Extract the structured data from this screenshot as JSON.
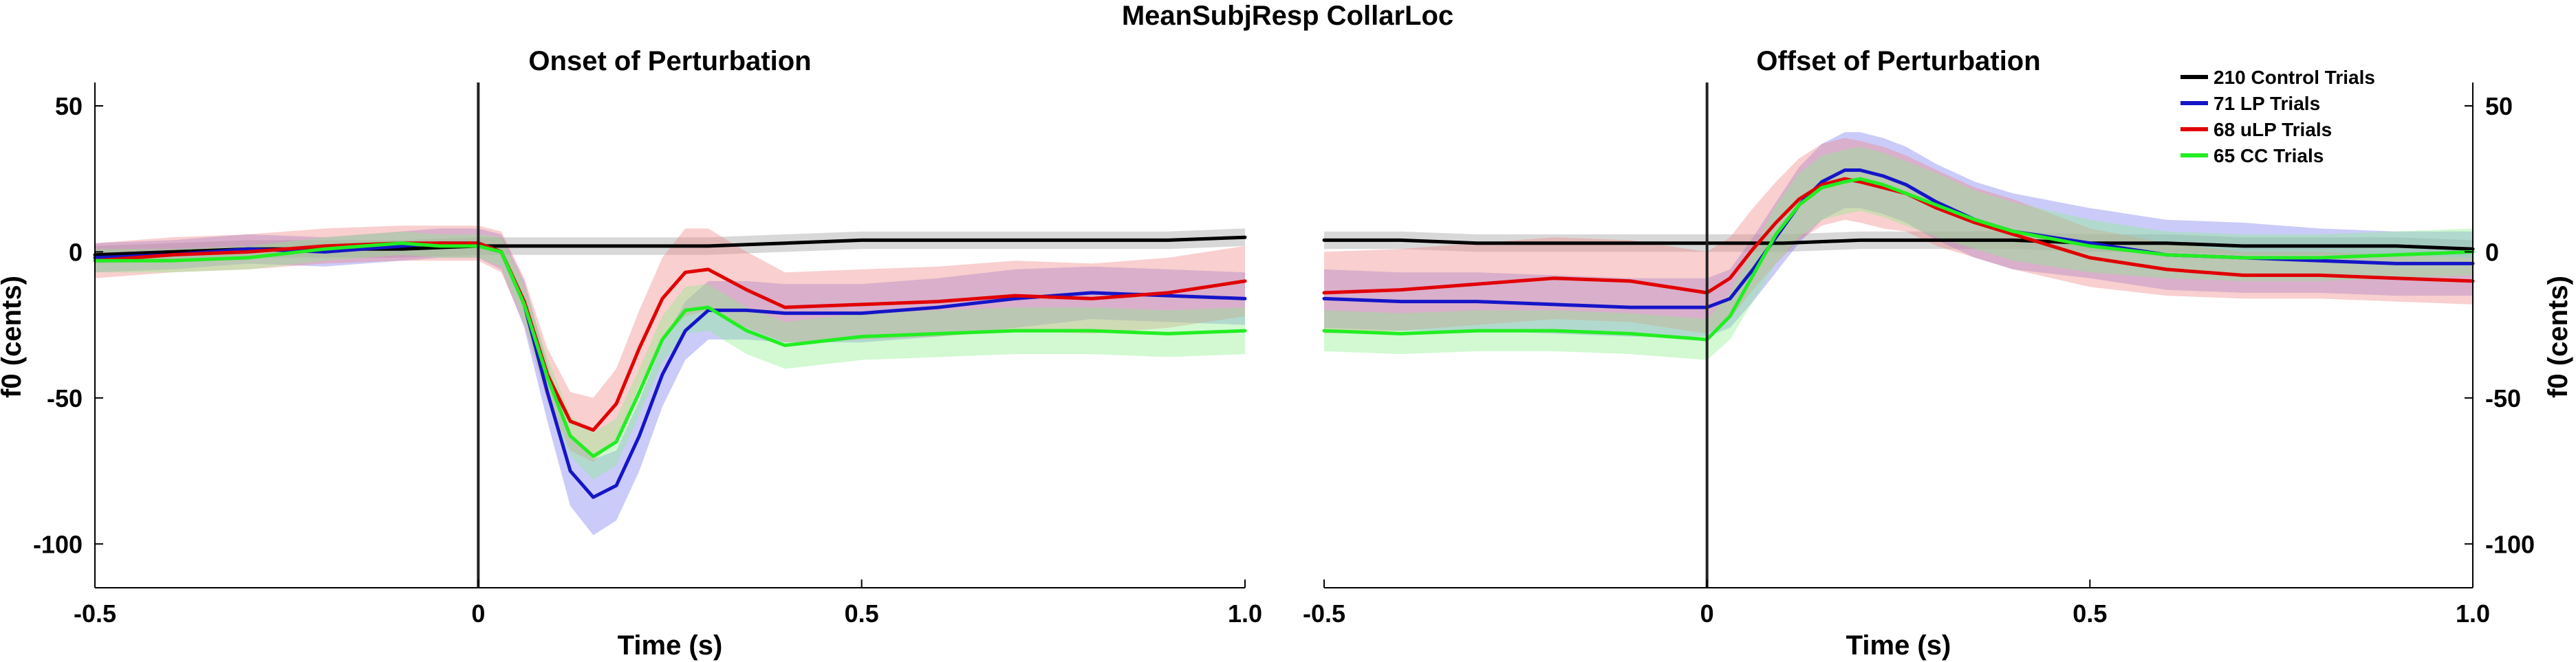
{
  "chart_data": {
    "title": "MeanSubjResp CollarLoc",
    "panels": [
      {
        "type": "line",
        "title": "Onset of Perturbation",
        "xlabel": "Time (s)",
        "ylabel": "f0 (cents)",
        "xlim": [
          -0.5,
          1.0
        ],
        "ylim": [
          -115,
          58
        ],
        "xticks": [
          -0.5,
          0,
          0.5,
          1.0
        ],
        "xtick_labels": [
          "-0.5",
          "0",
          "0.5",
          "1.0"
        ],
        "yticks": [
          50,
          0,
          -50,
          -100
        ],
        "ytick_labels": [
          "50",
          "0",
          "-50",
          "-100"
        ],
        "vline_x": 0,
        "series": [
          {
            "color": "#000000",
            "band": "#999999",
            "x": [
              -0.5,
              -0.4,
              -0.3,
              -0.2,
              -0.1,
              0,
              0.1,
              0.2,
              0.3,
              0.4,
              0.5,
              0.6,
              0.7,
              0.8,
              0.9,
              1.0
            ],
            "y": [
              -1,
              0,
              1,
              1,
              1,
              2,
              2,
              2,
              2,
              3,
              4,
              4,
              4,
              4,
              4,
              5
            ],
            "err": [
              3,
              3,
              3,
              3,
              3,
              3,
              3,
              3,
              3,
              3,
              3,
              3,
              3,
              3,
              3,
              3
            ]
          },
          {
            "color": "#1515c8",
            "band": "#7777f0",
            "x": [
              -0.5,
              -0.4,
              -0.3,
              -0.2,
              -0.1,
              -0.05,
              0,
              0.03,
              0.06,
              0.09,
              0.12,
              0.15,
              0.18,
              0.21,
              0.24,
              0.27,
              0.3,
              0.35,
              0.4,
              0.5,
              0.6,
              0.7,
              0.8,
              0.9,
              1.0
            ],
            "y": [
              -2,
              -1,
              1,
              0,
              2,
              3,
              3,
              0,
              -18,
              -48,
              -75,
              -84,
              -80,
              -63,
              -42,
              -27,
              -20,
              -20,
              -21,
              -21,
              -19,
              -16,
              -14,
              -15,
              -16
            ],
            "err": [
              5,
              5,
              5,
              5,
              5,
              5,
              5,
              6,
              8,
              10,
              12,
              13,
              12,
              12,
              11,
              10,
              10,
              10,
              10,
              10,
              10,
              10,
              9,
              9,
              9
            ]
          },
          {
            "color": "#e00000",
            "band": "#f08080",
            "x": [
              -0.5,
              -0.4,
              -0.3,
              -0.2,
              -0.1,
              -0.05,
              0,
              0.03,
              0.06,
              0.09,
              0.12,
              0.15,
              0.18,
              0.21,
              0.24,
              0.27,
              0.3,
              0.35,
              0.4,
              0.5,
              0.6,
              0.7,
              0.8,
              0.9,
              1.0
            ],
            "y": [
              -3,
              -1,
              0,
              2,
              3,
              3,
              3,
              0,
              -17,
              -42,
              -58,
              -61,
              -52,
              -33,
              -16,
              -7,
              -6,
              -13,
              -19,
              -18,
              -17,
              -15,
              -16,
              -14,
              -10
            ],
            "err": [
              6,
              6,
              6,
              6,
              6,
              6,
              6,
              7,
              8,
              9,
              10,
              11,
              12,
              13,
              14,
              15,
              14,
              13,
              12,
              12,
              12,
              12,
              12,
              12,
              12
            ]
          },
          {
            "color": "#22ee22",
            "band": "#88ee88",
            "x": [
              -0.5,
              -0.4,
              -0.3,
              -0.2,
              -0.1,
              -0.05,
              0,
              0.03,
              0.06,
              0.09,
              0.12,
              0.15,
              0.18,
              0.21,
              0.24,
              0.27,
              0.3,
              0.35,
              0.4,
              0.5,
              0.6,
              0.7,
              0.8,
              0.9,
              1.0
            ],
            "y": [
              -3,
              -3,
              -2,
              1,
              3,
              2,
              2,
              0,
              -18,
              -43,
              -63,
              -70,
              -65,
              -48,
              -30,
              -20,
              -19,
              -27,
              -32,
              -29,
              -28,
              -27,
              -27,
              -28,
              -27
            ],
            "err": [
              4,
              4,
              4,
              4,
              4,
              4,
              4,
              5,
              6,
              7,
              7,
              8,
              8,
              8,
              8,
              8,
              8,
              8,
              8,
              8,
              8,
              8,
              8,
              8,
              8
            ]
          }
        ]
      },
      {
        "type": "line",
        "title": "Offset of Perturbation",
        "xlabel": "Time (s)",
        "ylabel": "f0 (cents)",
        "xlim": [
          -0.5,
          1.0
        ],
        "ylim": [
          -115,
          58
        ],
        "xticks": [
          -0.5,
          0,
          0.5,
          1.0
        ],
        "xtick_labels": [
          "-0.5",
          "0",
          "0.5",
          "1.0"
        ],
        "yticks": [
          50,
          0,
          -50,
          -100
        ],
        "ytick_labels": [
          "50",
          "0",
          "-50",
          "-100"
        ],
        "vline_x": 0,
        "series": [
          {
            "color": "#000000",
            "band": "#999999",
            "x": [
              -0.5,
              -0.4,
              -0.3,
              -0.2,
              -0.1,
              0,
              0.1,
              0.2,
              0.3,
              0.4,
              0.5,
              0.6,
              0.7,
              0.8,
              0.9,
              1.0
            ],
            "y": [
              4,
              4,
              3,
              3,
              3,
              3,
              3,
              4,
              4,
              4,
              3,
              3,
              2,
              2,
              2,
              1
            ],
            "err": [
              3,
              3,
              3,
              3,
              3,
              3,
              3,
              3,
              3,
              3,
              3,
              3,
              3,
              3,
              3,
              3
            ]
          },
          {
            "color": "#1515c8",
            "band": "#7777f0",
            "x": [
              -0.5,
              -0.4,
              -0.3,
              -0.2,
              -0.1,
              -0.05,
              0,
              0.03,
              0.06,
              0.09,
              0.12,
              0.15,
              0.18,
              0.2,
              0.23,
              0.26,
              0.3,
              0.35,
              0.4,
              0.5,
              0.6,
              0.7,
              0.8,
              0.9,
              1.0
            ],
            "y": [
              -16,
              -17,
              -17,
              -18,
              -19,
              -19,
              -19,
              -16,
              -6,
              5,
              16,
              24,
              28,
              28,
              26,
              23,
              17,
              11,
              7,
              3,
              -1,
              -2,
              -3,
              -4,
              -4
            ],
            "err": [
              10,
              10,
              10,
              10,
              10,
              10,
              10,
              10,
              11,
              12,
              13,
              13,
              13,
              13,
              13,
              13,
              13,
              13,
              13,
              12,
              12,
              12,
              11,
              11,
              11
            ]
          },
          {
            "color": "#e00000",
            "band": "#f08080",
            "x": [
              -0.5,
              -0.4,
              -0.3,
              -0.2,
              -0.1,
              -0.05,
              0,
              0.03,
              0.06,
              0.09,
              0.12,
              0.15,
              0.18,
              0.2,
              0.23,
              0.26,
              0.3,
              0.35,
              0.4,
              0.5,
              0.6,
              0.7,
              0.8,
              0.9,
              1.0
            ],
            "y": [
              -14,
              -13,
              -11,
              -9,
              -10,
              -12,
              -14,
              -9,
              1,
              10,
              18,
              23,
              25,
              24,
              22,
              20,
              15,
              10,
              6,
              -2,
              -6,
              -8,
              -8,
              -9,
              -10
            ],
            "err": [
              14,
              14,
              14,
              14,
              14,
              14,
              14,
              14,
              14,
              14,
              14,
              14,
              14,
              14,
              14,
              13,
              13,
              12,
              12,
              10,
              9,
              8,
              8,
              8,
              8
            ]
          },
          {
            "color": "#22ee22",
            "band": "#88ee88",
            "x": [
              -0.5,
              -0.4,
              -0.3,
              -0.2,
              -0.1,
              -0.05,
              0,
              0.03,
              0.06,
              0.09,
              0.12,
              0.15,
              0.18,
              0.2,
              0.23,
              0.26,
              0.3,
              0.35,
              0.4,
              0.5,
              0.6,
              0.7,
              0.8,
              0.9,
              1.0
            ],
            "y": [
              -27,
              -28,
              -27,
              -27,
              -28,
              -29,
              -30,
              -22,
              -8,
              6,
              16,
              22,
              24,
              25,
              23,
              20,
              16,
              11,
              7,
              2,
              -1,
              -2,
              -2,
              -1,
              0
            ],
            "err": [
              7,
              7,
              7,
              7,
              7,
              7,
              7,
              8,
              9,
              10,
              11,
              11,
              11,
              11,
              11,
              11,
              11,
              10,
              10,
              9,
              8,
              8,
              8,
              8,
              8
            ]
          }
        ]
      }
    ],
    "legend": {
      "placement": "top-right",
      "entries": [
        {
          "label": "210 Control Trials",
          "color": "#000000"
        },
        {
          "label": "71 LP Trials",
          "color": "#1515c8"
        },
        {
          "label": "68 uLP Trials",
          "color": "#e00000"
        },
        {
          "label": "65 CC Trials",
          "color": "#22ee22"
        }
      ]
    }
  }
}
